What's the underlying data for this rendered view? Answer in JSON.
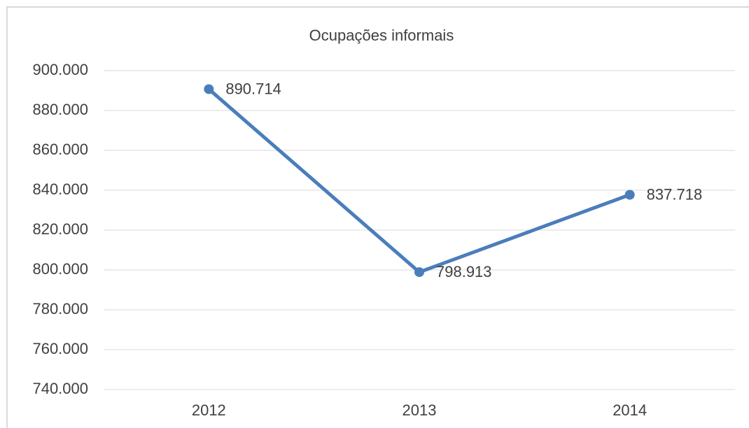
{
  "chart_data": {
    "type": "line",
    "title": "Ocupações informais",
    "categories": [
      "2012",
      "2013",
      "2014"
    ],
    "values": [
      890714,
      798913,
      837718
    ],
    "value_labels": [
      "890.714",
      "798.913",
      "837.718"
    ],
    "color": "#4a7ebb",
    "ylim": [
      740000,
      900000
    ],
    "yticks": [
      {
        "value": 740000,
        "label": "740.000"
      },
      {
        "value": 760000,
        "label": "760.000"
      },
      {
        "value": 780000,
        "label": "780.000"
      },
      {
        "value": 800000,
        "label": "800.000"
      },
      {
        "value": 820000,
        "label": "820.000"
      },
      {
        "value": 840000,
        "label": "840.000"
      },
      {
        "value": 860000,
        "label": "860.000"
      },
      {
        "value": 880000,
        "label": "880.000"
      },
      {
        "value": 900000,
        "label": "900.000"
      }
    ],
    "grid": true
  }
}
